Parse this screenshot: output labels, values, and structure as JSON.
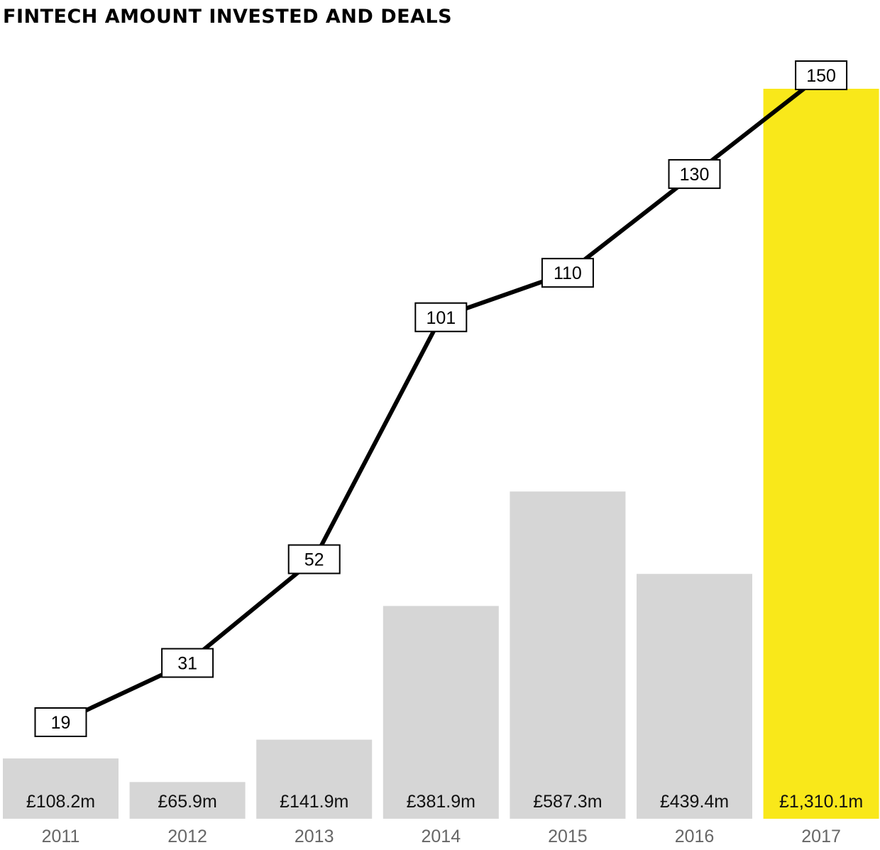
{
  "title": "FINTECH AMOUNT INVESTED AND DEALS",
  "colors": {
    "bar_default": "#d6d6d6",
    "bar_highlight": "#f9e81a",
    "line": "#000000",
    "label_box_fill": "#ffffff",
    "label_box_stroke": "#000000",
    "year_text": "#666666"
  },
  "chart_data": {
    "type": "bar",
    "title": "FINTECH AMOUNT INVESTED AND DEALS",
    "categories": [
      "2011",
      "2012",
      "2013",
      "2014",
      "2015",
      "2016",
      "2017"
    ],
    "series": [
      {
        "kind": "bar",
        "unit": "£m",
        "values": [
          108.2,
          65.9,
          141.9,
          381.9,
          587.3,
          439.4,
          1310.1
        ],
        "labels": [
          "£108.2m",
          "£65.9m",
          "£141.9m",
          "£381.9m",
          "£587.3m",
          "£439.4m",
          "£1,310.1m"
        ],
        "highlight_index": 6
      },
      {
        "kind": "line",
        "values": [
          19,
          31,
          52,
          101,
          110,
          130,
          150
        ],
        "labels": [
          "19",
          "31",
          "52",
          "101",
          "110",
          "130",
          "150"
        ]
      }
    ],
    "xlabel": "",
    "ylabel": "",
    "grid": false,
    "legend": "none"
  }
}
